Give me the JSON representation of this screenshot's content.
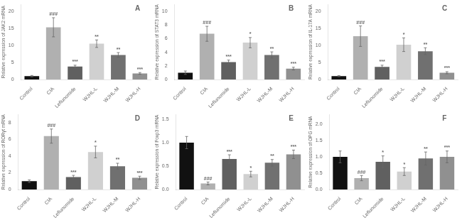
{
  "chart_data": [
    {
      "type": "bar",
      "title": "A",
      "ylabel": "Relative expression of JAK2 mRNA",
      "categories": [
        "Control",
        "CIA",
        "Leflunomide",
        "WJHL-L",
        "WJHL-M",
        "WJHL-H"
      ],
      "values": [
        1.0,
        15.3,
        3.8,
        10.5,
        7.2,
        1.8
      ],
      "errors": [
        0.2,
        2.8,
        0.4,
        1.1,
        0.7,
        0.25
      ],
      "colors": [
        "#111111",
        "#b0b0b0",
        "#606060",
        "#d0d0d0",
        "#707070",
        "#909090"
      ],
      "ylim": [
        0,
        22
      ],
      "yticks": [
        0,
        5,
        10,
        15,
        20
      ],
      "grid": false,
      "annotations": [
        {
          "category": "CIA",
          "text": "###"
        },
        {
          "category": "Leflunomide",
          "text": "***"
        },
        {
          "category": "WJHL-L",
          "text": "**"
        },
        {
          "category": "WJHL-M",
          "text": "**"
        },
        {
          "category": "WJHL-H",
          "text": "***"
        }
      ]
    },
    {
      "type": "bar",
      "title": "B",
      "ylabel": "Relative expression of STAT3 mRNA",
      "categories": [
        "Control",
        "CIA",
        "Leflunomide",
        "WJHL-L",
        "WJHL-M",
        "WJHL-H"
      ],
      "values": [
        1.0,
        6.7,
        2.55,
        5.4,
        3.6,
        1.6
      ],
      "errors": [
        0.25,
        1.1,
        0.3,
        0.75,
        0.45,
        0.2
      ],
      "colors": [
        "#111111",
        "#b0b0b0",
        "#606060",
        "#d0d0d0",
        "#707070",
        "#909090"
      ],
      "ylim": [
        0,
        11
      ],
      "yticks": [
        0,
        2,
        4,
        6,
        8,
        10
      ],
      "grid": false,
      "annotations": [
        {
          "category": "CIA",
          "text": "###"
        },
        {
          "category": "Leflunomide",
          "text": "***"
        },
        {
          "category": "WJHL-L",
          "text": "*"
        },
        {
          "category": "WJHL-M",
          "text": "**"
        },
        {
          "category": "WJHL-H",
          "text": "***"
        }
      ]
    },
    {
      "type": "bar",
      "title": "C",
      "ylabel": "Relative expression of IL-17A mRNA",
      "categories": [
        "Control",
        "CIA",
        "Leflunomide",
        "WJHL-L",
        "WJHL-M",
        "WJHL-H"
      ],
      "values": [
        1.0,
        12.7,
        3.7,
        10.2,
        8.3,
        2.0
      ],
      "errors": [
        0.15,
        3.0,
        0.5,
        2.0,
        1.0,
        0.3
      ],
      "colors": [
        "#111111",
        "#b0b0b0",
        "#606060",
        "#d0d0d0",
        "#707070",
        "#909090"
      ],
      "ylim": [
        0,
        22
      ],
      "yticks": [
        0,
        5,
        10,
        15,
        20
      ],
      "grid": false,
      "annotations": [
        {
          "category": "CIA",
          "text": "###"
        },
        {
          "category": "Leflunomide",
          "text": "***"
        },
        {
          "category": "WJHL-L",
          "text": "*"
        },
        {
          "category": "WJHL-M",
          "text": "**"
        },
        {
          "category": "WJHL-H",
          "text": "***"
        }
      ]
    },
    {
      "type": "bar",
      "title": "D",
      "ylabel": "Relative expression of RORγt mRNA",
      "categories": [
        "Control",
        "CIA",
        "Leflunomide",
        "WJHL-L",
        "WJHL-M",
        "WJHL-H"
      ],
      "values": [
        1.0,
        6.4,
        1.5,
        4.5,
        2.8,
        1.4
      ],
      "errors": [
        0.15,
        0.85,
        0.2,
        0.7,
        0.35,
        0.2
      ],
      "colors": [
        "#111111",
        "#b0b0b0",
        "#606060",
        "#d0d0d0",
        "#707070",
        "#909090"
      ],
      "ylim": [
        0,
        9
      ],
      "yticks": [
        0,
        2,
        4,
        6,
        8
      ],
      "grid": false,
      "annotations": [
        {
          "category": "CIA",
          "text": "###"
        },
        {
          "category": "Leflunomide",
          "text": "***"
        },
        {
          "category": "WJHL-L",
          "text": "*"
        },
        {
          "category": "WJHL-M",
          "text": "**"
        },
        {
          "category": "WJHL-H",
          "text": "***"
        }
      ]
    },
    {
      "type": "bar",
      "title": "E",
      "ylabel": "Relative expression of Foxp3 mRNA",
      "categories": [
        "Control",
        "CIA",
        "Leflunomide",
        "WJHL-L",
        "WJHL-M",
        "WJHL-H"
      ],
      "values": [
        1.0,
        0.13,
        0.65,
        0.33,
        0.57,
        0.75
      ],
      "errors": [
        0.13,
        0.03,
        0.09,
        0.06,
        0.07,
        0.09
      ],
      "colors": [
        "#111111",
        "#b0b0b0",
        "#606060",
        "#d0d0d0",
        "#707070",
        "#909090"
      ],
      "ylim": [
        0,
        1.6
      ],
      "yticks": [
        {
          "value": 0,
          "label": "0.0"
        },
        0.5,
        {
          "value": 1,
          "label": "1.0"
        },
        1.5
      ],
      "grid": false,
      "annotations": [
        {
          "category": "CIA",
          "text": "###"
        },
        {
          "category": "Leflunomide",
          "text": "***"
        },
        {
          "category": "WJHL-L",
          "text": "*"
        },
        {
          "category": "WJHL-M",
          "text": "**"
        },
        {
          "category": "WJHL-H",
          "text": "***"
        }
      ]
    },
    {
      "type": "bar",
      "title": "F",
      "ylabel": "Relative expression of OPG mRNA",
      "categories": [
        "Control",
        "CIA",
        "Leflunomide",
        "WJHL-L",
        "WJHL-M",
        "WJHL-H"
      ],
      "values": [
        1.0,
        0.35,
        0.85,
        0.55,
        0.95,
        1.0
      ],
      "errors": [
        0.18,
        0.08,
        0.18,
        0.12,
        0.2,
        0.18
      ],
      "colors": [
        "#111111",
        "#b0b0b0",
        "#606060",
        "#d0d0d0",
        "#707070",
        "#909090"
      ],
      "ylim": [
        0,
        2.3
      ],
      "yticks": [
        {
          "value": 0,
          "label": "0.0"
        },
        0.5,
        {
          "value": 1,
          "label": "1.0"
        },
        1.5,
        {
          "value": 2,
          "label": "2.0"
        }
      ],
      "grid": false,
      "annotations": [
        {
          "category": "CIA",
          "text": "###"
        },
        {
          "category": "Leflunomide",
          "text": "*"
        },
        {
          "category": "WJHL-L",
          "text": "*"
        },
        {
          "category": "WJHL-M",
          "text": "**"
        },
        {
          "category": "WJHL-H",
          "text": "***"
        }
      ]
    }
  ]
}
